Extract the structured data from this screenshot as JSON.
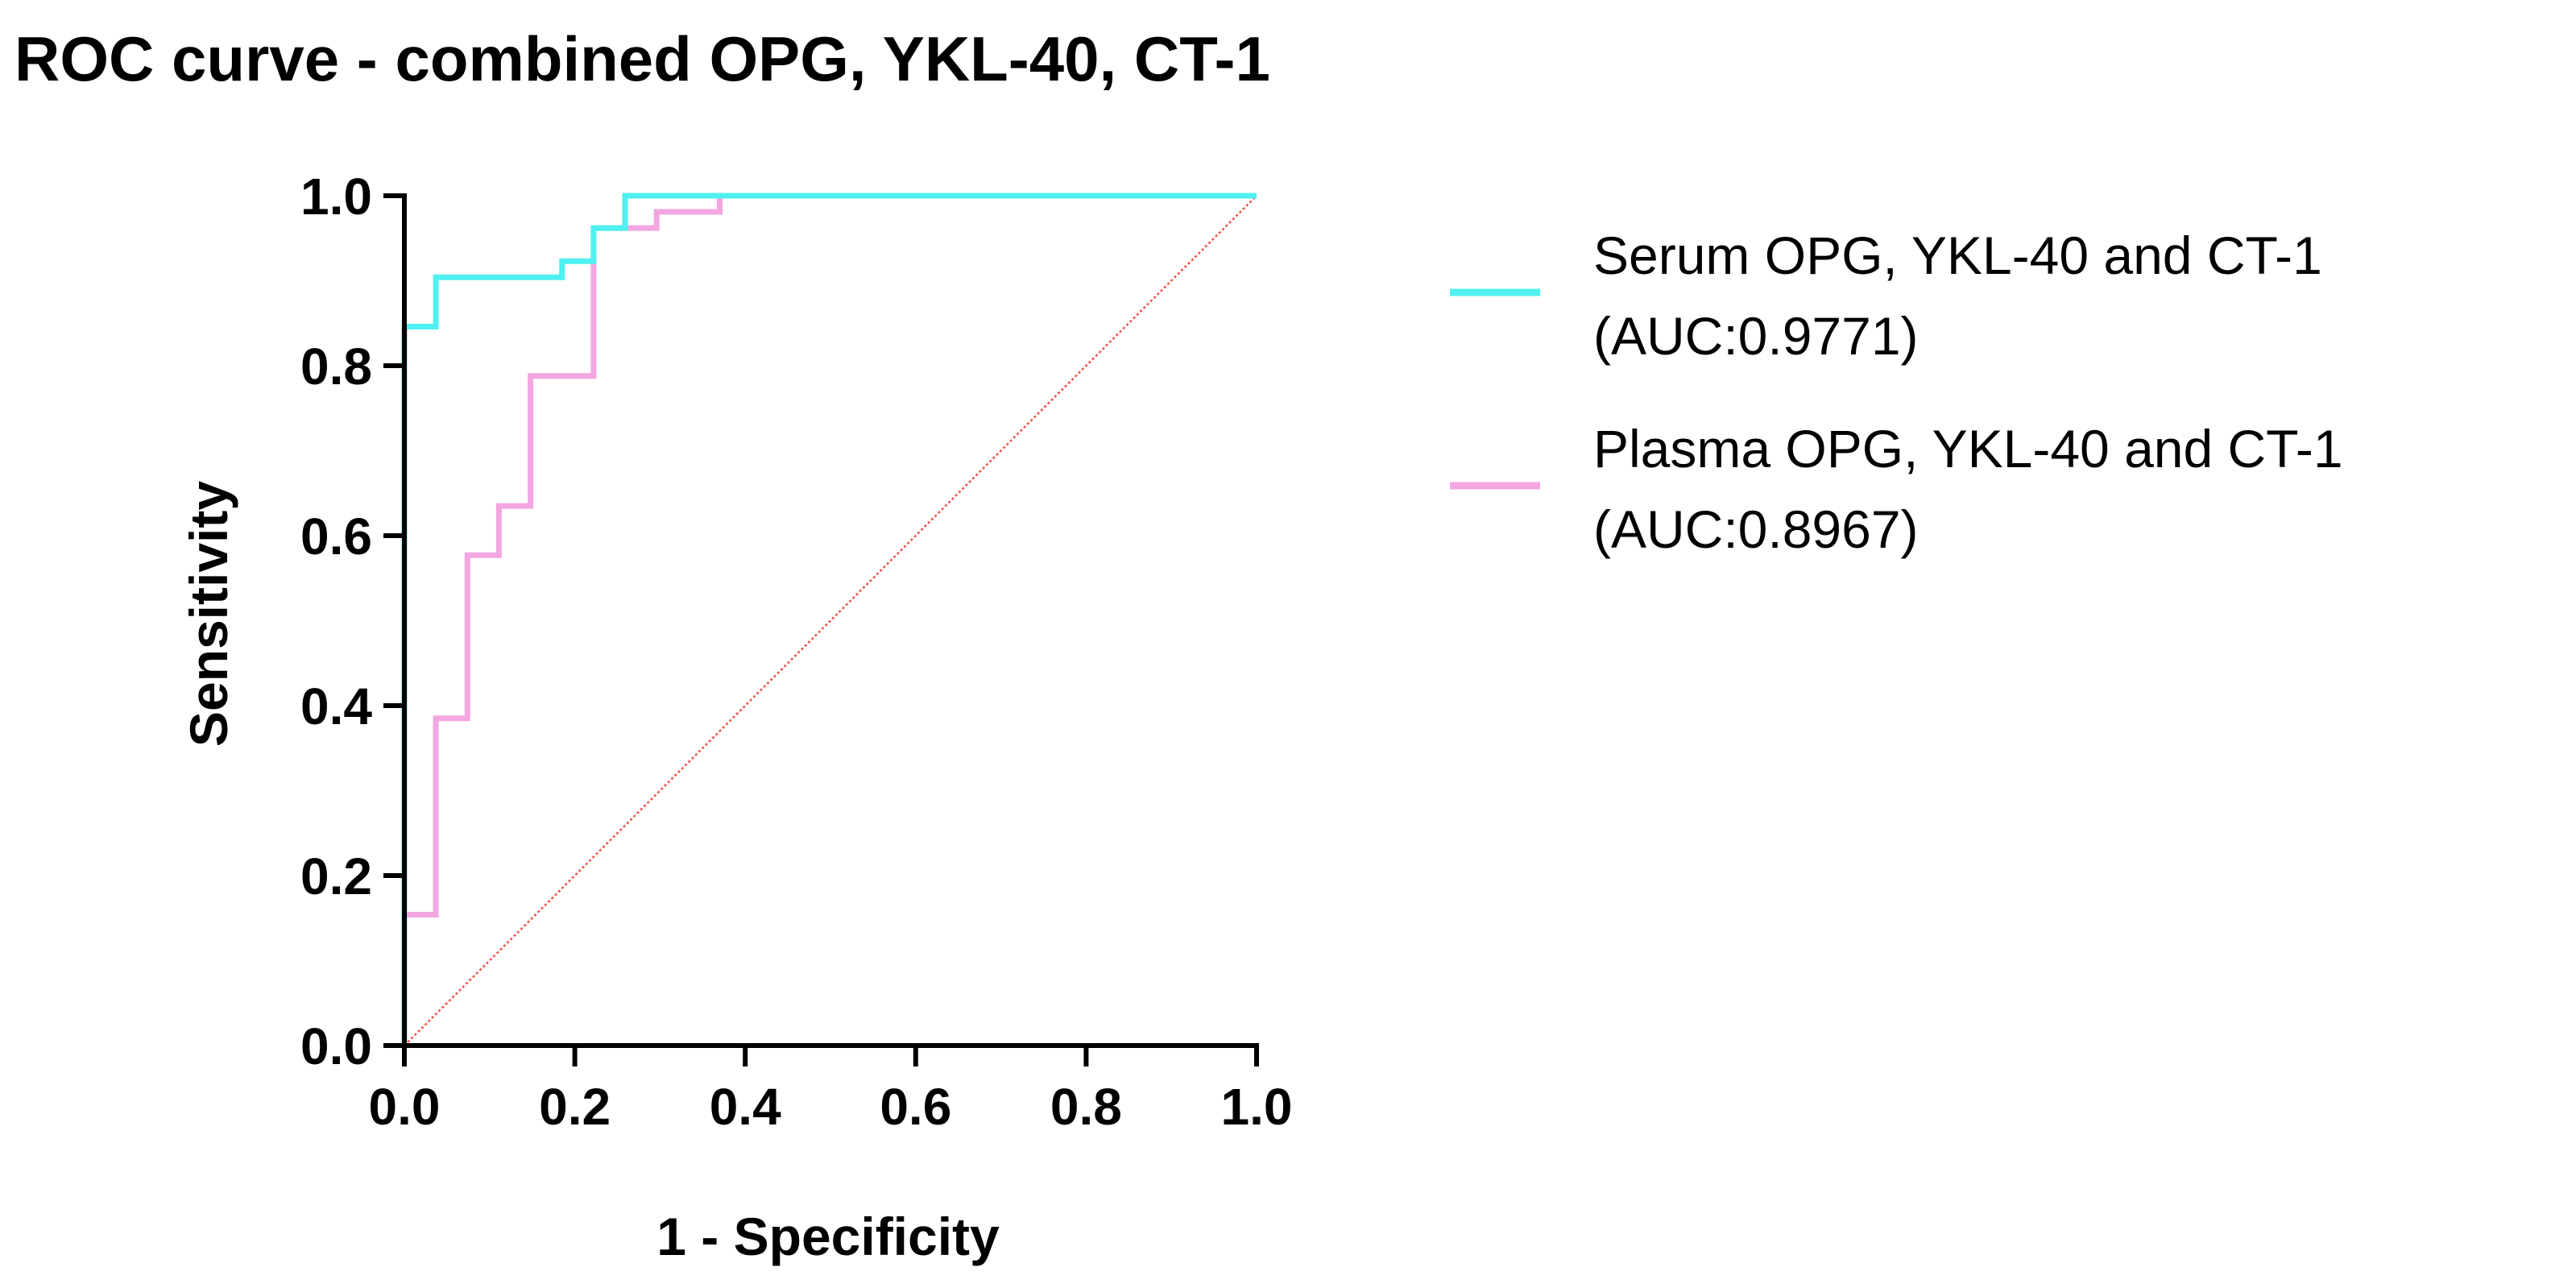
{
  "chart_data": {
    "type": "line",
    "title": "ROC curve - combined OPG, YKL-40, CT-1",
    "xlabel": "1 - Specificity",
    "ylabel": "Sensitivity",
    "xlim": [
      0,
      1
    ],
    "ylim": [
      0,
      1
    ],
    "x_ticks": [
      "0.0",
      "0.2",
      "0.4",
      "0.6",
      "0.8",
      "1.0"
    ],
    "y_ticks": [
      "0.0",
      "0.2",
      "0.4",
      "0.6",
      "0.8",
      "1.0"
    ],
    "grid": false,
    "legend_position": "right",
    "series": [
      {
        "name": "Serum OPG, YKL-40 and CT-1",
        "auc_label": "(AUC:0.9771)",
        "color": "#4ff0f0",
        "x": [
          0,
          0,
          0,
          0.037,
          0.037,
          0.185,
          0.185,
          0.222,
          0.222,
          0.259,
          0.259,
          1.0
        ],
        "y": [
          0,
          0.846,
          0.846,
          0.846,
          0.904,
          0.904,
          0.923,
          0.923,
          0.962,
          0.962,
          1.0,
          1.0
        ]
      },
      {
        "name": "Plasma OPG, YKL-40 and CT-1",
        "auc_label": "(AUC:0.8967)",
        "color": "#f3a6e0",
        "x": [
          0,
          0,
          0.037,
          0.037,
          0.074,
          0.074,
          0.111,
          0.111,
          0.148,
          0.148,
          0.222,
          0.222,
          0.296,
          0.296,
          0.37,
          0.37,
          1.0
        ],
        "y": [
          0,
          0.154,
          0.154,
          0.385,
          0.385,
          0.577,
          0.577,
          0.635,
          0.635,
          0.788,
          0.788,
          0.962,
          0.962,
          0.981,
          0.981,
          1.0,
          1.0
        ]
      }
    ],
    "reference_line": {
      "color": "#f0524a",
      "x": [
        0,
        1
      ],
      "y": [
        0,
        1
      ]
    }
  }
}
